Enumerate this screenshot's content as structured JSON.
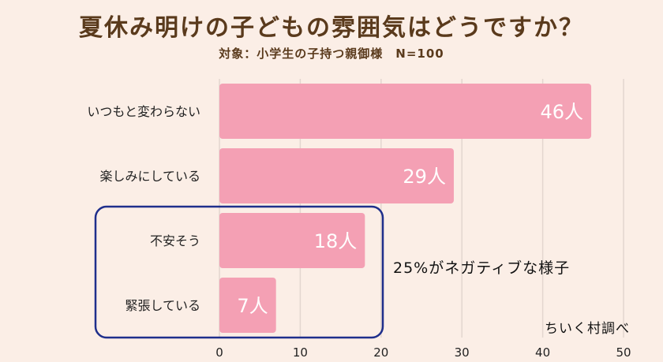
{
  "chart_data": {
    "type": "bar",
    "orientation": "horizontal",
    "title": "夏休み明けの子どもの雰囲気はどうですか？",
    "subtitle": "対象：小学生の子持つ親御様　N=100",
    "categories": [
      "いつもと変わらない",
      "楽しみにしている",
      "不安そう",
      "緊張している"
    ],
    "values": [
      46,
      29,
      18,
      7
    ],
    "value_labels": [
      "46人",
      "29人",
      "18人",
      "7人"
    ],
    "xlim": [
      0,
      50
    ],
    "xticks": [
      "0",
      "10",
      "20",
      "30",
      "40",
      "50"
    ],
    "grid": true,
    "bar_color": "#f4a0b4",
    "highlight_box_color": "#1f2f8c",
    "highlighted_categories": [
      "不安そう",
      "緊張している"
    ],
    "annotation": "25%がネガティブな様子",
    "source": "ちいく村調べ"
  }
}
